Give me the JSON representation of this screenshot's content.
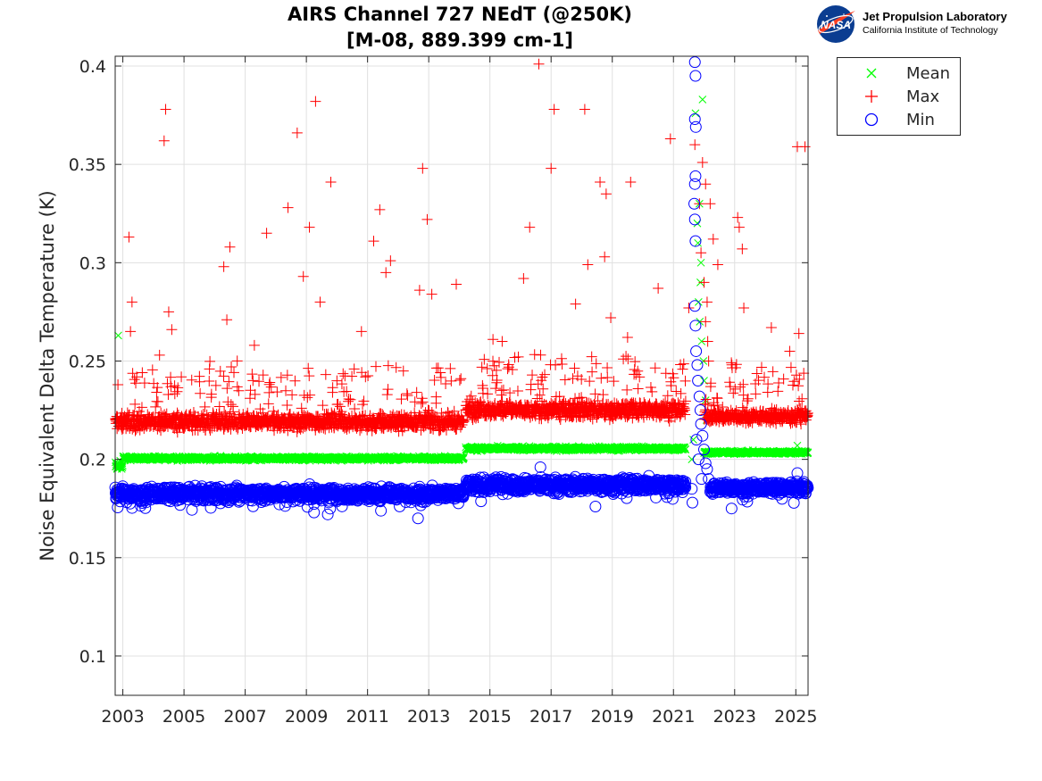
{
  "title_line1": "AIRS Channel 727 NEdT (@250K)",
  "title_line2": "[M-08, 889.399 cm-1]",
  "logo": {
    "emblem_text": "NASA",
    "line1": "Jet Propulsion Laboratory",
    "line2": "California Institute of Technology"
  },
  "legend": [
    {
      "label": "Mean",
      "color": "#00ff00",
      "marker": "x"
    },
    {
      "label": "Max",
      "color": "#ff0000",
      "marker": "+"
    },
    {
      "label": "Min",
      "color": "#0000ff",
      "marker": "o"
    }
  ],
  "chart_data": {
    "type": "scatter",
    "title": "AIRS Channel 727 NEdT (@250K) [M-08, 889.399 cm-1]",
    "xlabel": "",
    "ylabel": "Noise Equivalent Delta Temperature (K)",
    "xlim": [
      2002.75,
      2025.4
    ],
    "ylim": [
      0.08,
      0.405
    ],
    "xticks": [
      2003,
      2005,
      2007,
      2009,
      2011,
      2013,
      2015,
      2017,
      2019,
      2021,
      2023,
      2025
    ],
    "yticks": [
      0.1,
      0.15,
      0.2,
      0.25,
      0.3,
      0.35,
      0.4
    ],
    "ytick_labels": [
      "0.1",
      "0.15",
      "0.2",
      "0.25",
      "0.3",
      "0.35",
      "0.4"
    ],
    "grid": true,
    "legend_position": "outside-top-right",
    "series": [
      {
        "name": "Mean",
        "color": "#00ff00",
        "marker": "x",
        "levels": [
          {
            "x": [
              2002.75,
              2003.0
            ],
            "y": 0.197,
            "spread": 0.003
          },
          {
            "x": [
              2003.0,
              2014.15
            ],
            "y": 0.2005,
            "spread": 0.0015
          },
          {
            "x": [
              2014.2,
              2021.4
            ],
            "y": 0.2055,
            "spread": 0.0015
          },
          {
            "x": [
              2022.0,
              2025.4
            ],
            "y": 0.2035,
            "spread": 0.0012
          }
        ],
        "points": [
          [
            2002.85,
            0.263
          ],
          [
            2021.72,
            0.376
          ],
          [
            2021.95,
            0.383
          ],
          [
            2021.85,
            0.33
          ],
          [
            2021.78,
            0.32
          ],
          [
            2021.8,
            0.31
          ],
          [
            2021.9,
            0.3
          ],
          [
            2021.88,
            0.29
          ],
          [
            2021.82,
            0.28
          ],
          [
            2021.86,
            0.27
          ],
          [
            2021.92,
            0.26
          ],
          [
            2021.98,
            0.25
          ],
          [
            2022.0,
            0.24
          ],
          [
            2022.05,
            0.23
          ],
          [
            2022.08,
            0.22
          ],
          [
            2021.6,
            0.2
          ],
          [
            2021.65,
            0.21
          ],
          [
            2025.05,
            0.207
          ]
        ]
      },
      {
        "name": "Max",
        "color": "#ff0000",
        "marker": "+",
        "levels": [
          {
            "x": [
              2002.75,
              2014.15
            ],
            "y": 0.219,
            "spread": 0.006
          },
          {
            "x": [
              2014.2,
              2021.4
            ],
            "y": 0.225,
            "spread": 0.006
          },
          {
            "x": [
              2022.0,
              2025.4
            ],
            "y": 0.222,
            "spread": 0.005
          }
        ],
        "points": [
          [
            2003.2,
            0.313
          ],
          [
            2003.3,
            0.28
          ],
          [
            2003.25,
            0.265
          ],
          [
            2004.4,
            0.378
          ],
          [
            2004.35,
            0.362
          ],
          [
            2004.5,
            0.275
          ],
          [
            2004.6,
            0.266
          ],
          [
            2006.3,
            0.298
          ],
          [
            2006.5,
            0.308
          ],
          [
            2006.4,
            0.271
          ],
          [
            2007.7,
            0.315
          ],
          [
            2008.4,
            0.328
          ],
          [
            2008.7,
            0.366
          ],
          [
            2008.9,
            0.293
          ],
          [
            2009.1,
            0.318
          ],
          [
            2009.3,
            0.382
          ],
          [
            2009.8,
            0.341
          ],
          [
            2009.45,
            0.28
          ],
          [
            2011.2,
            0.311
          ],
          [
            2011.4,
            0.327
          ],
          [
            2011.6,
            0.295
          ],
          [
            2011.75,
            0.301
          ],
          [
            2012.8,
            0.348
          ],
          [
            2012.95,
            0.322
          ],
          [
            2012.7,
            0.286
          ],
          [
            2013.1,
            0.284
          ],
          [
            2013.9,
            0.289
          ],
          [
            2015.1,
            0.261
          ],
          [
            2016.1,
            0.292
          ],
          [
            2016.3,
            0.318
          ],
          [
            2016.6,
            0.401
          ],
          [
            2017.0,
            0.348
          ],
          [
            2017.1,
            0.378
          ],
          [
            2018.1,
            0.378
          ],
          [
            2018.2,
            0.299
          ],
          [
            2018.6,
            0.341
          ],
          [
            2018.8,
            0.335
          ],
          [
            2018.75,
            0.303
          ],
          [
            2018.95,
            0.272
          ],
          [
            2019.6,
            0.341
          ],
          [
            2020.9,
            0.363
          ],
          [
            2020.5,
            0.287
          ],
          [
            2021.5,
            0.277
          ],
          [
            2021.7,
            0.36
          ],
          [
            2021.95,
            0.351
          ],
          [
            2022.05,
            0.34
          ],
          [
            2021.85,
            0.33
          ],
          [
            2022.2,
            0.33
          ],
          [
            2022.3,
            0.312
          ],
          [
            2022.45,
            0.299
          ],
          [
            2023.1,
            0.323
          ],
          [
            2023.15,
            0.318
          ],
          [
            2023.25,
            0.307
          ],
          [
            2023.3,
            0.277
          ],
          [
            2024.2,
            0.267
          ],
          [
            2025.05,
            0.359
          ],
          [
            2025.3,
            0.359
          ],
          [
            2025.1,
            0.264
          ],
          [
            2022.1,
            0.28
          ],
          [
            2022.0,
            0.29
          ],
          [
            2021.9,
            0.305
          ],
          [
            2022.05,
            0.27
          ],
          [
            2022.12,
            0.26
          ],
          [
            2022.15,
            0.25
          ],
          [
            2004.2,
            0.253
          ],
          [
            2007.3,
            0.258
          ],
          [
            2010.8,
            0.265
          ],
          [
            2015.4,
            0.26
          ],
          [
            2017.8,
            0.279
          ],
          [
            2019.5,
            0.262
          ],
          [
            2024.8,
            0.255
          ]
        ]
      },
      {
        "name": "Min",
        "color": "#0000ff",
        "marker": "o",
        "levels": [
          {
            "x": [
              2002.75,
              2014.15
            ],
            "y": 0.1825,
            "spread": 0.005
          },
          {
            "x": [
              2014.2,
              2021.4
            ],
            "y": 0.187,
            "spread": 0.005
          },
          {
            "x": [
              2022.2,
              2025.4
            ],
            "y": 0.1855,
            "spread": 0.004
          }
        ],
        "points": [
          [
            2012.65,
            0.17
          ],
          [
            2009.7,
            0.172
          ],
          [
            2009.25,
            0.173
          ],
          [
            2021.7,
            0.402
          ],
          [
            2021.72,
            0.395
          ],
          [
            2021.7,
            0.373
          ],
          [
            2021.73,
            0.369
          ],
          [
            2021.72,
            0.344
          ],
          [
            2021.7,
            0.34
          ],
          [
            2021.68,
            0.33
          ],
          [
            2021.7,
            0.322
          ],
          [
            2021.72,
            0.311
          ],
          [
            2021.7,
            0.278
          ],
          [
            2021.72,
            0.268
          ],
          [
            2021.74,
            0.255
          ],
          [
            2021.78,
            0.248
          ],
          [
            2021.8,
            0.24
          ],
          [
            2021.85,
            0.232
          ],
          [
            2021.88,
            0.225
          ],
          [
            2021.9,
            0.218
          ],
          [
            2021.95,
            0.212
          ],
          [
            2022.0,
            0.205
          ],
          [
            2022.05,
            0.198
          ],
          [
            2021.75,
            0.21
          ],
          [
            2021.82,
            0.2
          ],
          [
            2021.92,
            0.19
          ],
          [
            2021.6,
            0.185
          ],
          [
            2022.1,
            0.195
          ],
          [
            2022.15,
            0.19
          ],
          [
            2021.62,
            0.178
          ],
          [
            2018.45,
            0.176
          ],
          [
            2016.65,
            0.196
          ],
          [
            2022.9,
            0.175
          ],
          [
            2025.05,
            0.193
          ]
        ]
      }
    ],
    "spike": {
      "x": [
        2021.55,
        2022.2
      ]
    }
  }
}
